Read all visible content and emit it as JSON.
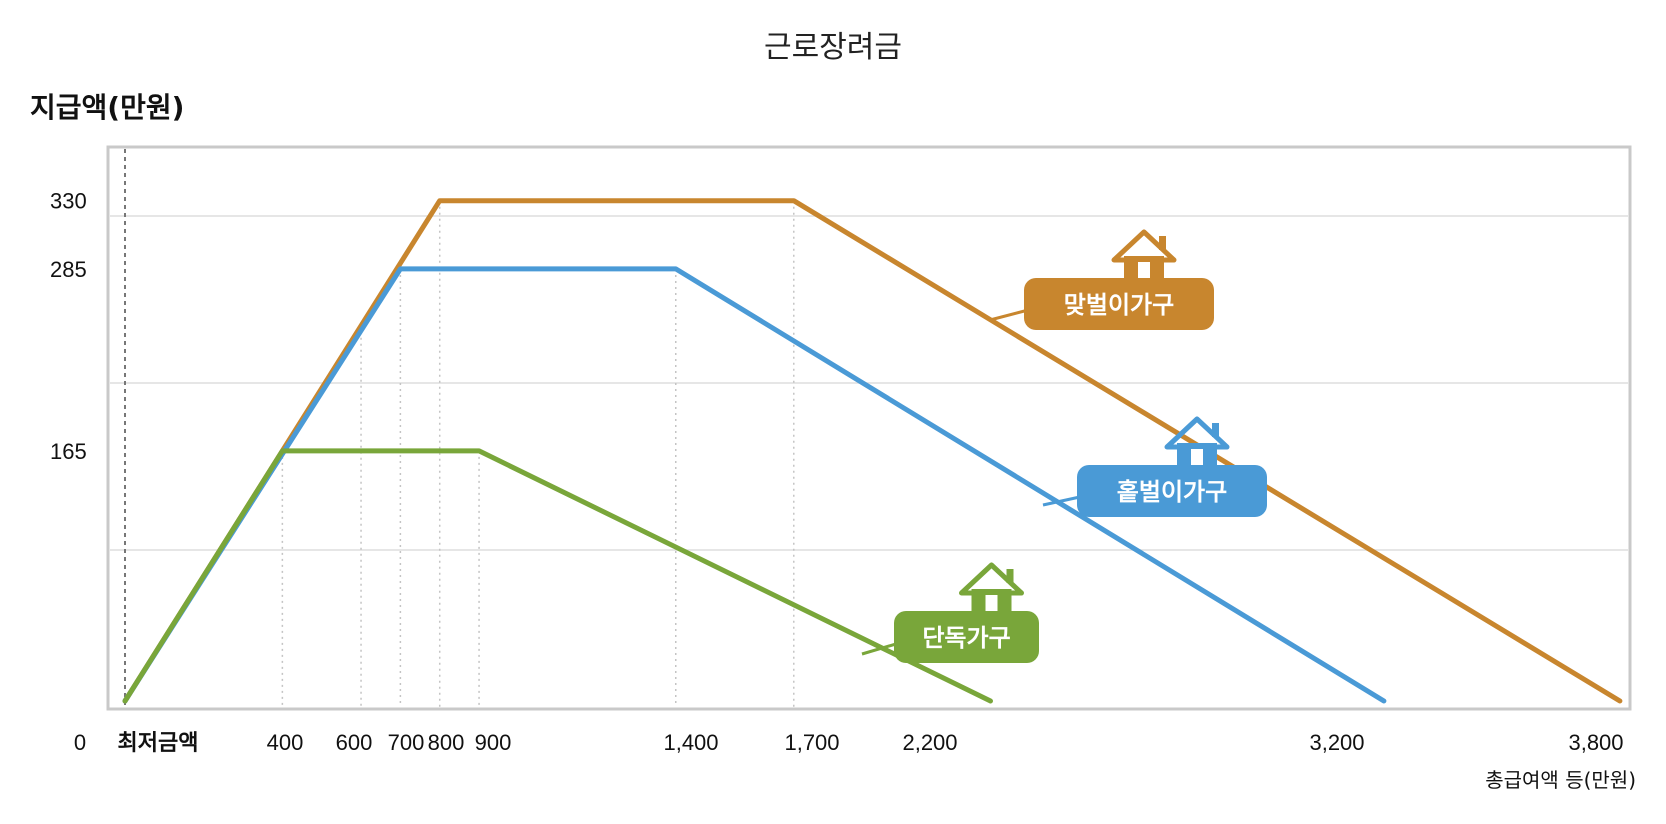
{
  "title": "근로장려금",
  "chart_data": {
    "type": "line",
    "title": "근로장려금",
    "ylabel": "지급액(만원)",
    "xlabel": "총급여액 등(만원)",
    "x_ticks": [
      "0",
      "최저금액",
      "400",
      "600",
      "700",
      "800",
      "900",
      "1,400",
      "1,700",
      "2,200",
      "3,200",
      "3,800"
    ],
    "y_ticks": [
      "330",
      "285",
      "165"
    ],
    "grid": true,
    "series": [
      {
        "name": "맞벌이가구",
        "color": "#c8862e",
        "x": [
          0,
          800,
          1700,
          3800
        ],
        "y": [
          0,
          330,
          330,
          0
        ]
      },
      {
        "name": "홑벌이가구",
        "color": "#4a9ad6",
        "x": [
          0,
          700,
          1400,
          3200
        ],
        "y": [
          0,
          285,
          285,
          0
        ]
      },
      {
        "name": "단독가구",
        "color": "#79a63a",
        "x": [
          0,
          400,
          900,
          2200
        ],
        "y": [
          0,
          165,
          165,
          0
        ]
      }
    ]
  }
}
